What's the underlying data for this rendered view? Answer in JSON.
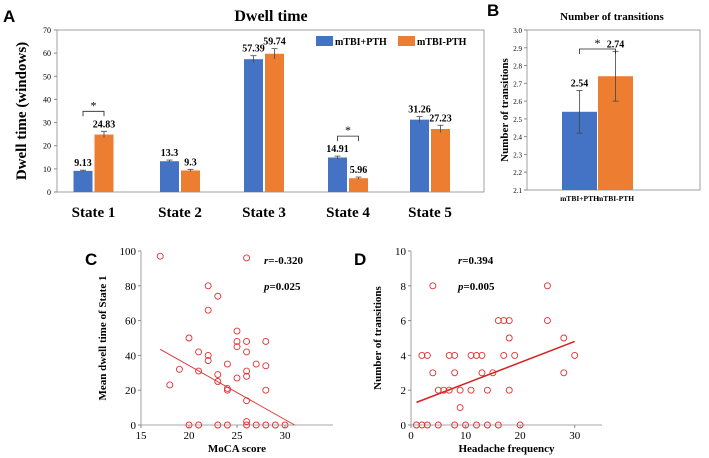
{
  "chart_data": [
    {
      "panel": "A",
      "type": "bar",
      "title": "Dwell time",
      "ylabel": "Dwell time (windows)",
      "ylim": [
        0,
        70
      ],
      "yticks": [
        0,
        10,
        20,
        30,
        40,
        50,
        60,
        70
      ],
      "categories": [
        "State 1",
        "State 2",
        "State 3",
        "State 4",
        "State 5"
      ],
      "series": [
        {
          "name": "mTBI+PTH",
          "color": "#4472c4",
          "values": [
            9.13,
            13.3,
            57.39,
            14.91,
            31.26
          ],
          "labels": [
            "9.13",
            "13.3",
            "57.39",
            "14.91",
            "31.26"
          ],
          "errors": [
            0.3,
            0.5,
            1.5,
            0.6,
            1.3
          ]
        },
        {
          "name": "mTBI-PTH",
          "color": "#ed7d31",
          "values": [
            24.83,
            9.3,
            59.74,
            5.96,
            27.23
          ],
          "labels": [
            "24.83",
            "9.3",
            "59.74",
            "5.96",
            "27.23"
          ],
          "errors": [
            1.4,
            0.5,
            2.2,
            0.5,
            1.6
          ]
        }
      ],
      "significance": [
        {
          "category": "State 1",
          "label": "*"
        },
        {
          "category": "State 4",
          "label": "*"
        }
      ],
      "legend": "top-right"
    },
    {
      "panel": "B",
      "type": "bar",
      "title": "Number of transitions",
      "ylabel": "Number of transitions",
      "ylim": [
        2.1,
        3.0
      ],
      "yticks": [
        2.1,
        2.2,
        2.3,
        2.4,
        2.5,
        2.6,
        2.7,
        2.8,
        2.9,
        3.0
      ],
      "ytick_labels": [
        "2.1",
        "2.2",
        "2.3",
        "2.4",
        "2.5",
        "2.6",
        "2.7",
        "2.8",
        "2.9",
        "3.0"
      ],
      "categories": [
        "mTBI+PTH",
        "mTBI-PTH"
      ],
      "values": [
        2.54,
        2.74
      ],
      "labels": [
        "2.54",
        "2.74"
      ],
      "errors": [
        0.12,
        0.14
      ],
      "colors": [
        "#4472c4",
        "#ed7d31"
      ],
      "significance": "*"
    },
    {
      "panel": "C",
      "type": "scatter",
      "xlabel": "MoCA score",
      "ylabel": "Mean dwell time of State 1",
      "xlim": [
        15,
        35
      ],
      "ylim": [
        0,
        100
      ],
      "xticks": [
        15,
        20,
        25,
        30
      ],
      "yticks": [
        0,
        20,
        40,
        60,
        80,
        100
      ],
      "annotations": {
        "r_symbol": "r",
        "r_value": "=-0.320",
        "p_symbol": "p",
        "p_value": "=0.025"
      },
      "fit": {
        "x": [
          17,
          31
        ],
        "y": [
          43.5,
          0
        ]
      },
      "points": [
        [
          17,
          97
        ],
        [
          18,
          23
        ],
        [
          19,
          32
        ],
        [
          20,
          50
        ],
        [
          20,
          0
        ],
        [
          21,
          42
        ],
        [
          21,
          31
        ],
        [
          21,
          0
        ],
        [
          22,
          80
        ],
        [
          22,
          66
        ],
        [
          22,
          40
        ],
        [
          22,
          37
        ],
        [
          23,
          74
        ],
        [
          23,
          29
        ],
        [
          23,
          25
        ],
        [
          23,
          0
        ],
        [
          24,
          35
        ],
        [
          24,
          21
        ],
        [
          24,
          20
        ],
        [
          24,
          0
        ],
        [
          25,
          54
        ],
        [
          25,
          48
        ],
        [
          25,
          45
        ],
        [
          25,
          27
        ],
        [
          26,
          96
        ],
        [
          26,
          48
        ],
        [
          26,
          42
        ],
        [
          26,
          31
        ],
        [
          26,
          28
        ],
        [
          26,
          14
        ],
        [
          26,
          2
        ],
        [
          26,
          0
        ],
        [
          27,
          35
        ],
        [
          27,
          0
        ],
        [
          28,
          48
        ],
        [
          28,
          34
        ],
        [
          28,
          20
        ],
        [
          28,
          0
        ],
        [
          29,
          0
        ],
        [
          30,
          0
        ]
      ]
    },
    {
      "panel": "D",
      "type": "scatter",
      "xlabel": "Headache frequency",
      "ylabel": "Number of transitions",
      "xlim": [
        0,
        35
      ],
      "ylim": [
        0,
        10
      ],
      "xticks": [
        0,
        10,
        20,
        30
      ],
      "yticks": [
        0,
        2,
        4,
        6,
        8,
        10
      ],
      "annotations": {
        "r_symbol": "r",
        "r_value": "=0.394",
        "p_symbol": "p",
        "p_value": "=0.005"
      },
      "fit": {
        "x": [
          1,
          30
        ],
        "y": [
          1.3,
          4.8
        ]
      },
      "points": [
        [
          1,
          0
        ],
        [
          2,
          4
        ],
        [
          2,
          0
        ],
        [
          3,
          4
        ],
        [
          3,
          0
        ],
        [
          4,
          8
        ],
        [
          4,
          3
        ],
        [
          5,
          2
        ],
        [
          5,
          0
        ],
        [
          6,
          2
        ],
        [
          7,
          2
        ],
        [
          7,
          4
        ],
        [
          8,
          4
        ],
        [
          8,
          3
        ],
        [
          8,
          0
        ],
        [
          9,
          1
        ],
        [
          9,
          2
        ],
        [
          10,
          0
        ],
        [
          11,
          4
        ],
        [
          11,
          2
        ],
        [
          12,
          4
        ],
        [
          12,
          0
        ],
        [
          13,
          4
        ],
        [
          13,
          3
        ],
        [
          14,
          2
        ],
        [
          14,
          0
        ],
        [
          15,
          3
        ],
        [
          16,
          6
        ],
        [
          16,
          0
        ],
        [
          17,
          6
        ],
        [
          17,
          4
        ],
        [
          18,
          5
        ],
        [
          18,
          6
        ],
        [
          18,
          2
        ],
        [
          19,
          4
        ],
        [
          20,
          0
        ],
        [
          25,
          6
        ],
        [
          25,
          8
        ],
        [
          28,
          3
        ],
        [
          28,
          5
        ],
        [
          30,
          4
        ]
      ]
    }
  ]
}
